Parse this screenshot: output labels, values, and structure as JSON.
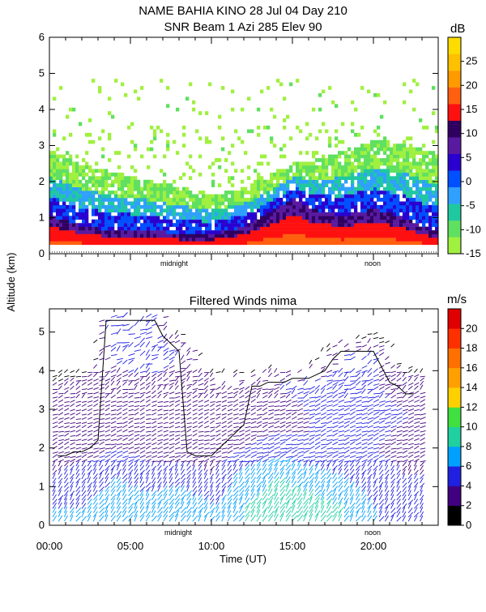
{
  "header": {
    "line1": "NAME BAHIA KINO  28 Jul 04 Day 210",
    "line2": "SNR Beam 1 Azi 285 Elev 90"
  },
  "chart_data": [
    {
      "type": "heatmap",
      "title": "NAME BAHIA KINO  28 Jul 04 Day 210",
      "subtitle": "SNR Beam 1 Azi 285 Elev 90",
      "ylabel": "Altitude (km)",
      "ylim": [
        0,
        6
      ],
      "yticks": [
        "0",
        "1",
        "2",
        "3",
        "4",
        "5",
        "6"
      ],
      "xlim": [
        0,
        24
      ],
      "x_annotations": [
        {
          "x": 8,
          "label": "midnight"
        },
        {
          "x": 20,
          "label": "noon"
        }
      ],
      "colorbar": {
        "unit": "dB",
        "min": -15,
        "max": 30,
        "labels": [
          "-15",
          "-10",
          "-5",
          "0",
          "5",
          "10",
          "15",
          "20",
          "25"
        ],
        "colors": [
          "#a0f040",
          "#60e060",
          "#20c8a0",
          "#30a0ff",
          "#0050ff",
          "#2a00d0",
          "#5a1aa0",
          "#300060",
          "#ff1010",
          "#ff6010",
          "#ff9a00",
          "#ffc000",
          "#ffdc00"
        ]
      },
      "series": [
        {
          "name_note": "",
          "x": [
            0,
            2,
            4,
            6,
            8,
            10,
            12,
            14,
            15,
            16,
            18,
            20,
            22,
            23.5
          ],
          "top_of_strong_echo_km": [
            1.0,
            0.7,
            0.6,
            0.6,
            0.5,
            0.5,
            0.7,
            1.2,
            1.5,
            1.2,
            1.0,
            1.2,
            0.9,
            0.6
          ],
          "top_of_detectable_echo_km": [
            2.8,
            2.4,
            2.2,
            2.0,
            1.8,
            1.6,
            1.8,
            2.2,
            2.5,
            2.5,
            2.8,
            3.1,
            3.0,
            2.8
          ]
        }
      ]
    },
    {
      "type": "scatter",
      "title": "Filtered Winds nima",
      "xlabel": "Time (UT)",
      "ylabel": "Altitude (km)",
      "xlim": [
        0,
        24
      ],
      "ylim": [
        0,
        5.6
      ],
      "xticks": [
        "00:00",
        "05:00",
        "10:00",
        "15:00",
        "20:00"
      ],
      "xtick_values": [
        0,
        5,
        10,
        15,
        20
      ],
      "yticks": [
        "0",
        "1",
        "2",
        "3",
        "4",
        "5"
      ],
      "x_annotations": [
        {
          "x": 8,
          "label": "midnight"
        },
        {
          "x": 20,
          "label": "noon"
        }
      ],
      "colorbar": {
        "unit": "m/s",
        "min": 0,
        "max": 22,
        "labels": [
          "0",
          "2",
          "4",
          "6",
          "8",
          "10",
          "12",
          "14",
          "16",
          "18",
          "20"
        ],
        "colors": [
          "#000000",
          "#400080",
          "#2020e0",
          "#00a0ff",
          "#20d0a0",
          "#40e040",
          "#ffd000",
          "#ffa000",
          "#ff7000",
          "#ff3000",
          "#e00000"
        ]
      },
      "wind_speed_ms": {
        "x": [
          0,
          2,
          4,
          6,
          8,
          10,
          12,
          14,
          16,
          18,
          20,
          22
        ],
        "altitudes_km": [
          0.4,
          1.2,
          2.0,
          2.8,
          3.6,
          4.4,
          5.2
        ],
        "speeds": [
          [
            6,
            6,
            7,
            7,
            8,
            6,
            8,
            9,
            9,
            8,
            6,
            5
          ],
          [
            4,
            5,
            6,
            5,
            5,
            4,
            7,
            8,
            7,
            6,
            5,
            4
          ],
          [
            3,
            3,
            4,
            3,
            3,
            3,
            4,
            5,
            4,
            4,
            4,
            3
          ],
          [
            3,
            2,
            3,
            2,
            2,
            2,
            3,
            3,
            4,
            4,
            5,
            4
          ],
          [
            2,
            3,
            3,
            3,
            3,
            3,
            3,
            4,
            5,
            5,
            4,
            3
          ],
          [
            0,
            0,
            5,
            6,
            4,
            0,
            0,
            0,
            0,
            4,
            4,
            0
          ],
          [
            0,
            0,
            6,
            5,
            0,
            0,
            0,
            0,
            0,
            0,
            0,
            0
          ]
        ]
      }
    }
  ]
}
